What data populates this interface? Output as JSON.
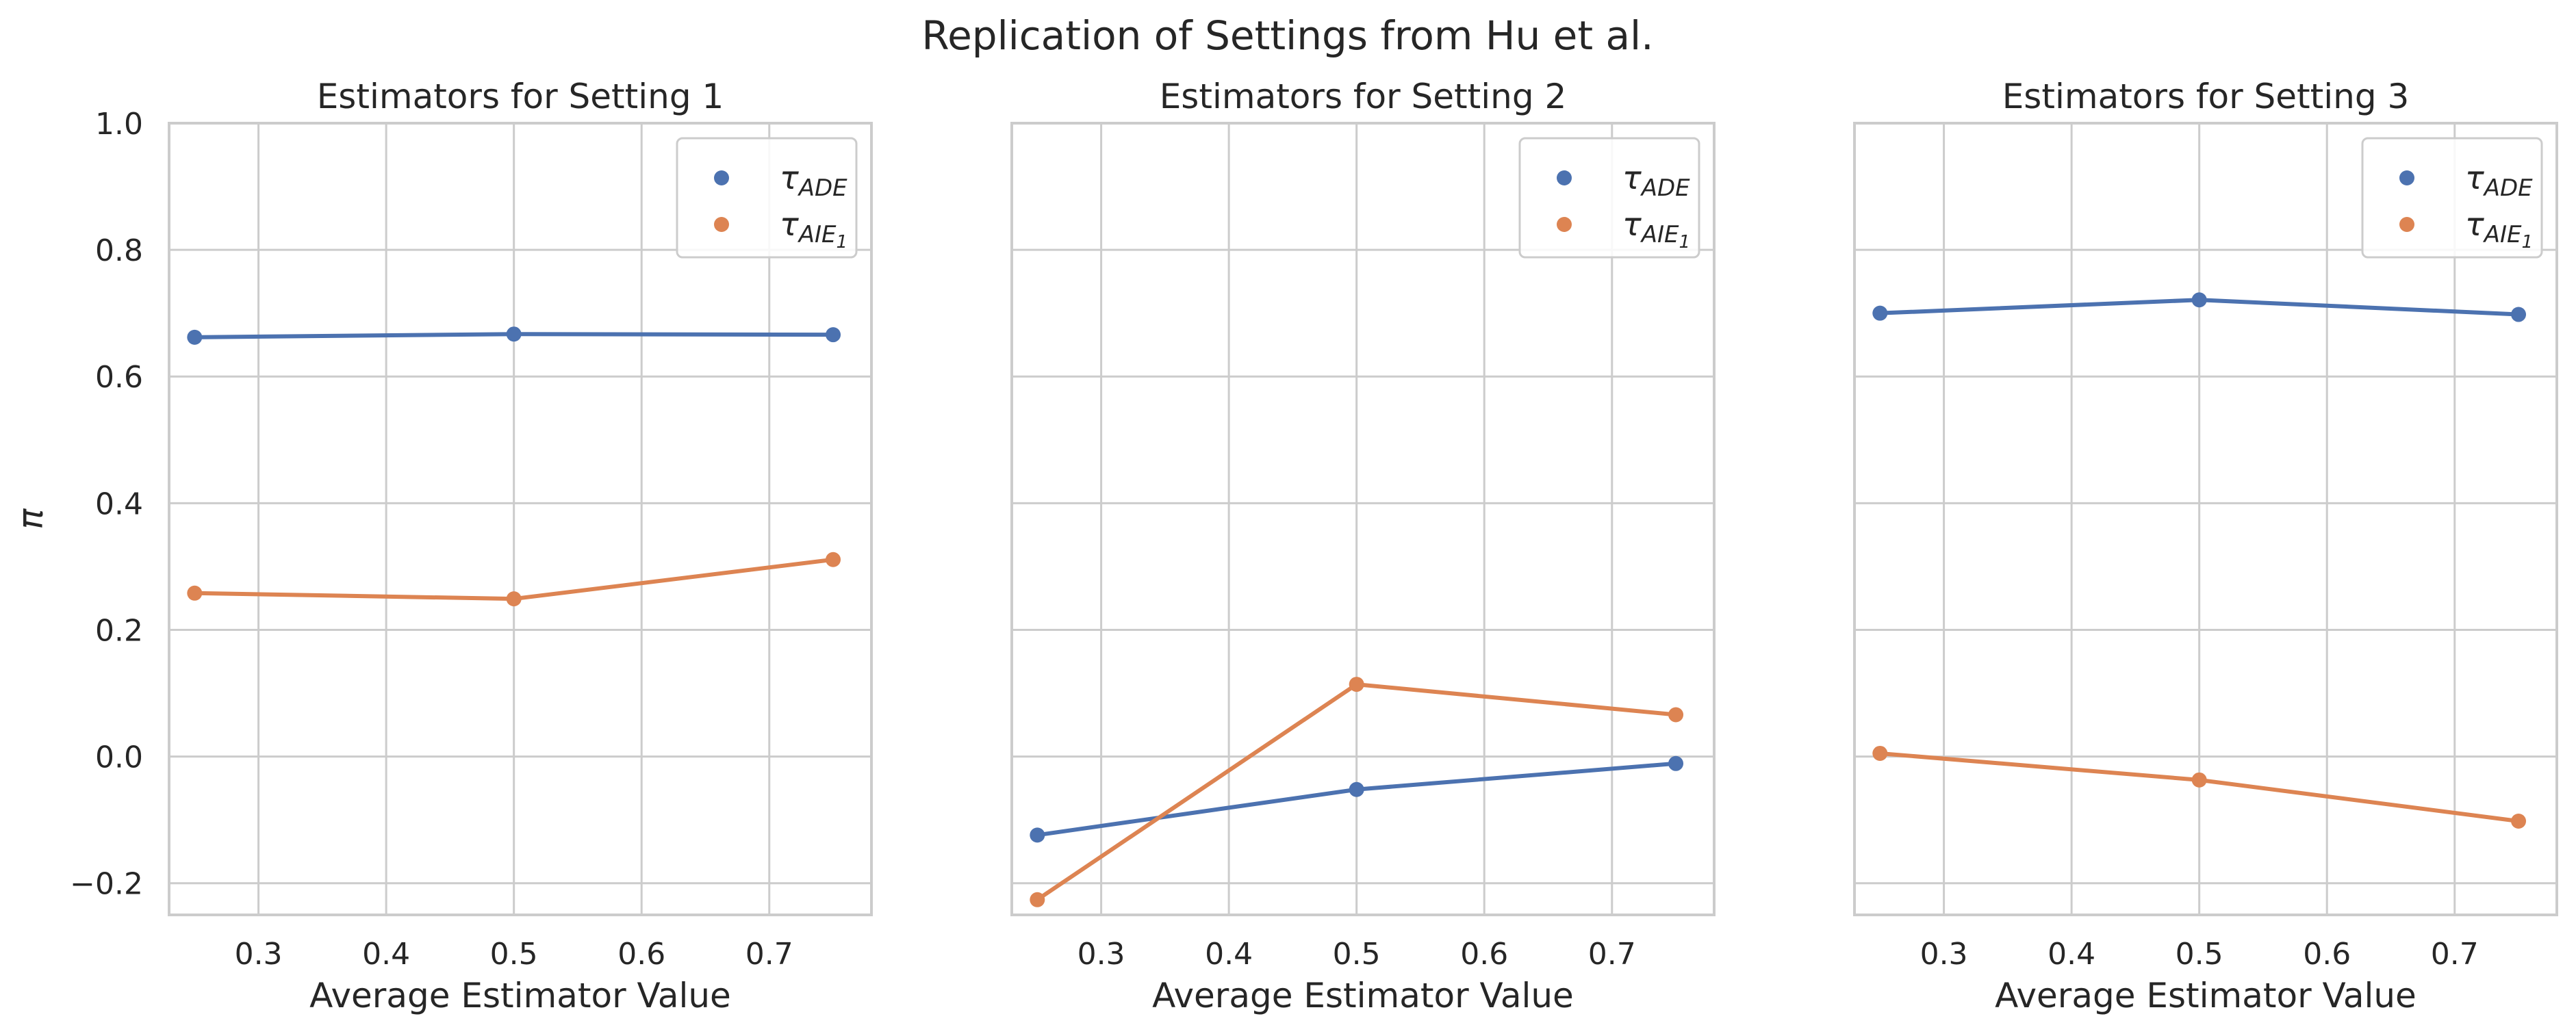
{
  "chart_data": {
    "suptitle": "Replication of Settings from Hu et al.",
    "ylabel": "π",
    "xlabel": "Average Estimator Value",
    "xlim": [
      0.23,
      0.78
    ],
    "ylim": [
      -0.25,
      1.0
    ],
    "xticks": [
      0.3,
      0.4,
      0.5,
      0.6,
      0.7
    ],
    "yticks": [
      -0.2,
      0.0,
      0.2,
      0.4,
      0.6,
      0.8,
      1.0
    ],
    "grid": true,
    "legend_position": "top-right",
    "colors": {
      "ADE": "#4c72b0",
      "AIE1": "#dd8452",
      "grid": "#cccccc",
      "frame": "#cccccc"
    },
    "legend": [
      {
        "key": "ADE",
        "symbol": "τ",
        "sub": "ADE"
      },
      {
        "key": "AIE1",
        "symbol": "τ",
        "sub": "AIE",
        "subsub": "1"
      }
    ],
    "panels": [
      {
        "type": "line",
        "title": "Estimators for Setting 1",
        "x": [
          0.25,
          0.5,
          0.75
        ],
        "series": [
          {
            "key": "ADE",
            "values": [
              0.662,
              0.667,
              0.666
            ]
          },
          {
            "key": "AIE1",
            "values": [
              0.258,
              0.249,
              0.311
            ]
          }
        ]
      },
      {
        "type": "line",
        "title": "Estimators for Setting 2",
        "x": [
          0.25,
          0.5,
          0.75
        ],
        "series": [
          {
            "key": "ADE",
            "values": [
              -0.124,
              -0.052,
              -0.011
            ]
          },
          {
            "key": "AIE1",
            "values": [
              -0.226,
              0.114,
              0.066
            ]
          }
        ]
      },
      {
        "type": "line",
        "title": "Estimators for Setting 3",
        "x": [
          0.25,
          0.5,
          0.75
        ],
        "series": [
          {
            "key": "ADE",
            "values": [
              0.7,
              0.721,
              0.698
            ]
          },
          {
            "key": "AIE1",
            "values": [
              0.005,
              -0.037,
              -0.102
            ]
          }
        ]
      }
    ]
  }
}
